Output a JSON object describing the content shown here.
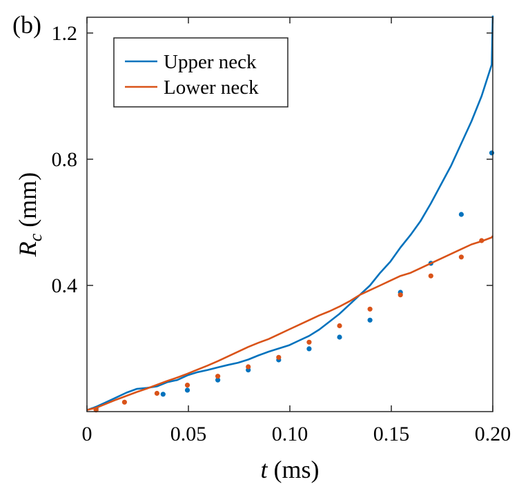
{
  "panel_label": "(b)",
  "chart_data": {
    "type": "line",
    "xlabel": {
      "var": "t",
      "unit": " (ms)"
    },
    "ylabel": {
      "var": "R",
      "sub": "c",
      "unit": " (mm)"
    },
    "xlim": [
      0,
      0.2
    ],
    "ylim": [
      0.0,
      1.25
    ],
    "xticks": [
      0,
      0.05,
      0.1,
      0.15,
      0.2
    ],
    "xtick_labels": [
      "0",
      "0.05",
      "0.10",
      "0.15",
      "0.20"
    ],
    "yticks": [
      0.4,
      0.8,
      1.2
    ],
    "ytick_labels": [
      "0.4",
      "0.8",
      "1.2"
    ],
    "grid": false,
    "legend_position": "top-left",
    "series": [
      {
        "name": "Upper neck",
        "color": "#0072BD",
        "x": [
          0.0,
          0.0045,
          0.0095,
          0.0145,
          0.0195,
          0.0245,
          0.0295,
          0.0345,
          0.0395,
          0.0445,
          0.0495,
          0.0545,
          0.0595,
          0.0645,
          0.0695,
          0.0745,
          0.0795,
          0.0845,
          0.0895,
          0.0945,
          0.0995,
          0.1045,
          0.1095,
          0.1145,
          0.1195,
          0.1245,
          0.1295,
          0.1345,
          0.1395,
          0.1445,
          0.1495,
          0.1545,
          0.1595,
          0.1645,
          0.1695,
          0.1745,
          0.1795,
          0.1845,
          0.1895,
          0.1945,
          0.1995,
          0.2
        ],
        "y": [
          0.005,
          0.015,
          0.03,
          0.045,
          0.06,
          0.072,
          0.075,
          0.08,
          0.093,
          0.1,
          0.115,
          0.125,
          0.132,
          0.14,
          0.148,
          0.155,
          0.165,
          0.178,
          0.19,
          0.2,
          0.21,
          0.225,
          0.24,
          0.26,
          0.285,
          0.31,
          0.34,
          0.37,
          0.4,
          0.44,
          0.475,
          0.52,
          0.56,
          0.605,
          0.66,
          0.72,
          0.78,
          0.85,
          0.92,
          1.0,
          1.1,
          1.255
        ],
        "marker_x": [
          0.0045,
          0.0375,
          0.0495,
          0.0645,
          0.0795,
          0.0945,
          0.1095,
          0.1245,
          0.1395,
          0.1545,
          0.1695,
          0.1845,
          0.1995
        ],
        "marker_y": [
          0.01,
          0.055,
          0.068,
          0.1,
          0.132,
          0.164,
          0.199,
          0.236,
          0.29,
          0.378,
          0.47,
          0.625,
          0.82
        ]
      },
      {
        "name": "Lower neck",
        "color": "#D95319",
        "x": [
          0.0,
          0.0045,
          0.0095,
          0.0145,
          0.0195,
          0.0245,
          0.0295,
          0.0345,
          0.0395,
          0.0445,
          0.0495,
          0.0545,
          0.0595,
          0.0645,
          0.0695,
          0.0745,
          0.0795,
          0.0845,
          0.0895,
          0.0945,
          0.0995,
          0.1045,
          0.1095,
          0.1145,
          0.1195,
          0.1245,
          0.1295,
          0.1345,
          0.1395,
          0.1445,
          0.1495,
          0.1545,
          0.1595,
          0.1645,
          0.1695,
          0.1745,
          0.1795,
          0.1845,
          0.1895,
          0.1945,
          0.1995,
          0.2
        ],
        "y": [
          0.005,
          0.012,
          0.025,
          0.038,
          0.05,
          0.062,
          0.073,
          0.085,
          0.097,
          0.108,
          0.12,
          0.133,
          0.146,
          0.16,
          0.175,
          0.19,
          0.205,
          0.218,
          0.23,
          0.245,
          0.26,
          0.275,
          0.29,
          0.305,
          0.318,
          0.333,
          0.35,
          0.37,
          0.385,
          0.4,
          0.415,
          0.43,
          0.44,
          0.455,
          0.47,
          0.485,
          0.5,
          0.515,
          0.53,
          0.54,
          0.552,
          0.557
        ],
        "marker_x": [
          0.0045,
          0.0185,
          0.0345,
          0.0495,
          0.0645,
          0.0795,
          0.0945,
          0.1095,
          0.1245,
          0.1395,
          0.1545,
          0.1695,
          0.1845,
          0.1945
        ],
        "marker_y": [
          0.005,
          0.03,
          0.058,
          0.084,
          0.112,
          0.142,
          0.172,
          0.22,
          0.272,
          0.325,
          0.37,
          0.43,
          0.49,
          0.542
        ]
      }
    ]
  }
}
